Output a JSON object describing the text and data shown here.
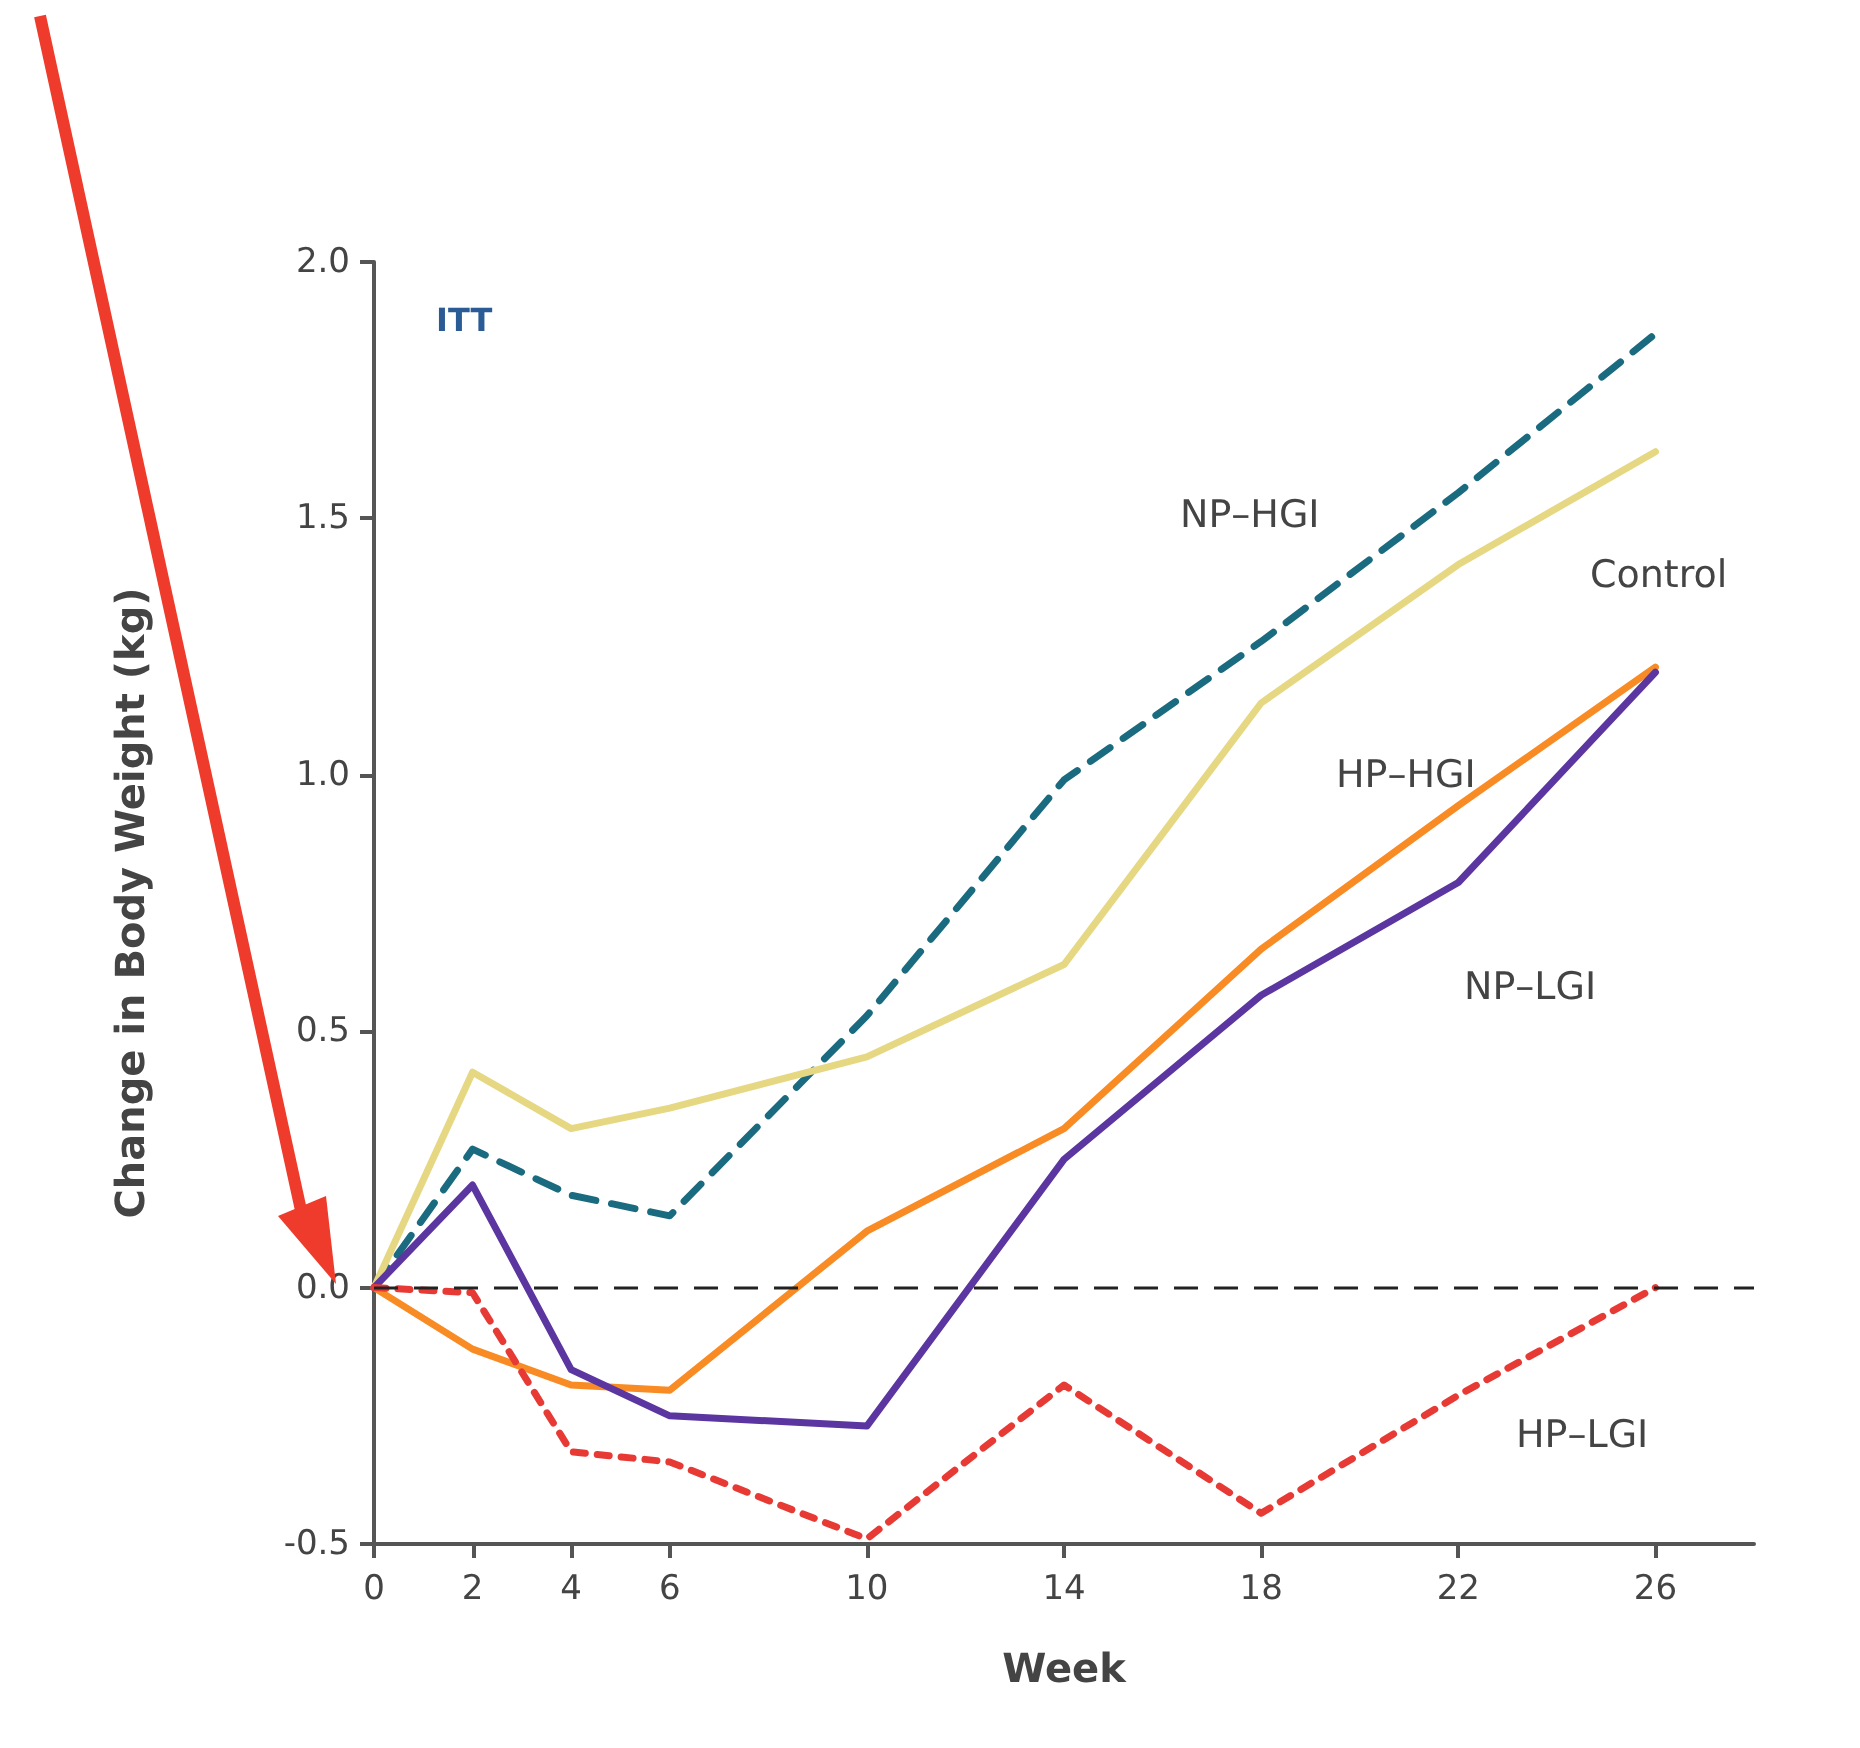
{
  "chart_data": {
    "type": "line",
    "xlabel": "Week",
    "ylabel": "Change in Body Weight (kg)",
    "annotations": [
      "ITT"
    ],
    "x": [
      0,
      2,
      4,
      6,
      10,
      14,
      18,
      22,
      26
    ],
    "series": [
      {
        "name": "NP–HGI",
        "color": "#1a6b7f",
        "line_style": "dashed",
        "values": [
          0,
          0.27,
          0.18,
          0.14,
          0.53,
          0.99,
          1.26,
          1.55,
          1.86
        ]
      },
      {
        "name": "Control",
        "color": "#e6d882",
        "line_style": "solid",
        "values": [
          0,
          0.42,
          0.31,
          0.35,
          0.45,
          0.63,
          1.14,
          1.41,
          1.63
        ]
      },
      {
        "name": "HP–HGI",
        "color": "#f98b24",
        "line_style": "solid",
        "values": [
          0,
          -0.12,
          -0.19,
          -0.2,
          0.11,
          0.31,
          0.66,
          0.94,
          1.21
        ]
      },
      {
        "name": "NP–LGI",
        "color": "#5b35a0",
        "line_style": "solid",
        "values": [
          0,
          0.2,
          -0.16,
          -0.25,
          -0.27,
          0.25,
          0.57,
          0.79,
          1.2
        ]
      },
      {
        "name": "HP–LGI",
        "color": "#e83a35",
        "line_style": "dotted",
        "values": [
          0,
          -0.01,
          -0.32,
          -0.34,
          -0.49,
          -0.19,
          -0.44,
          -0.21,
          0
        ]
      }
    ],
    "xlim": [
      0,
      28
    ],
    "xticks": [
      0,
      2,
      4,
      6,
      10,
      14,
      18,
      22,
      26
    ],
    "ylim": [
      -0.5,
      2.0
    ],
    "yticks": [
      -0.5,
      {
        "value": 0,
        "label": "0.0"
      },
      0.5,
      {
        "value": 1,
        "label": "1.0"
      },
      1.5,
      {
        "value": 2,
        "label": "2.0"
      }
    ],
    "ref_lines": [
      {
        "axis": "y",
        "value": 0,
        "label": null,
        "color": "#222222",
        "line_style": "dashed"
      }
    ],
    "grid": false,
    "legend": false,
    "marker": "none"
  }
}
